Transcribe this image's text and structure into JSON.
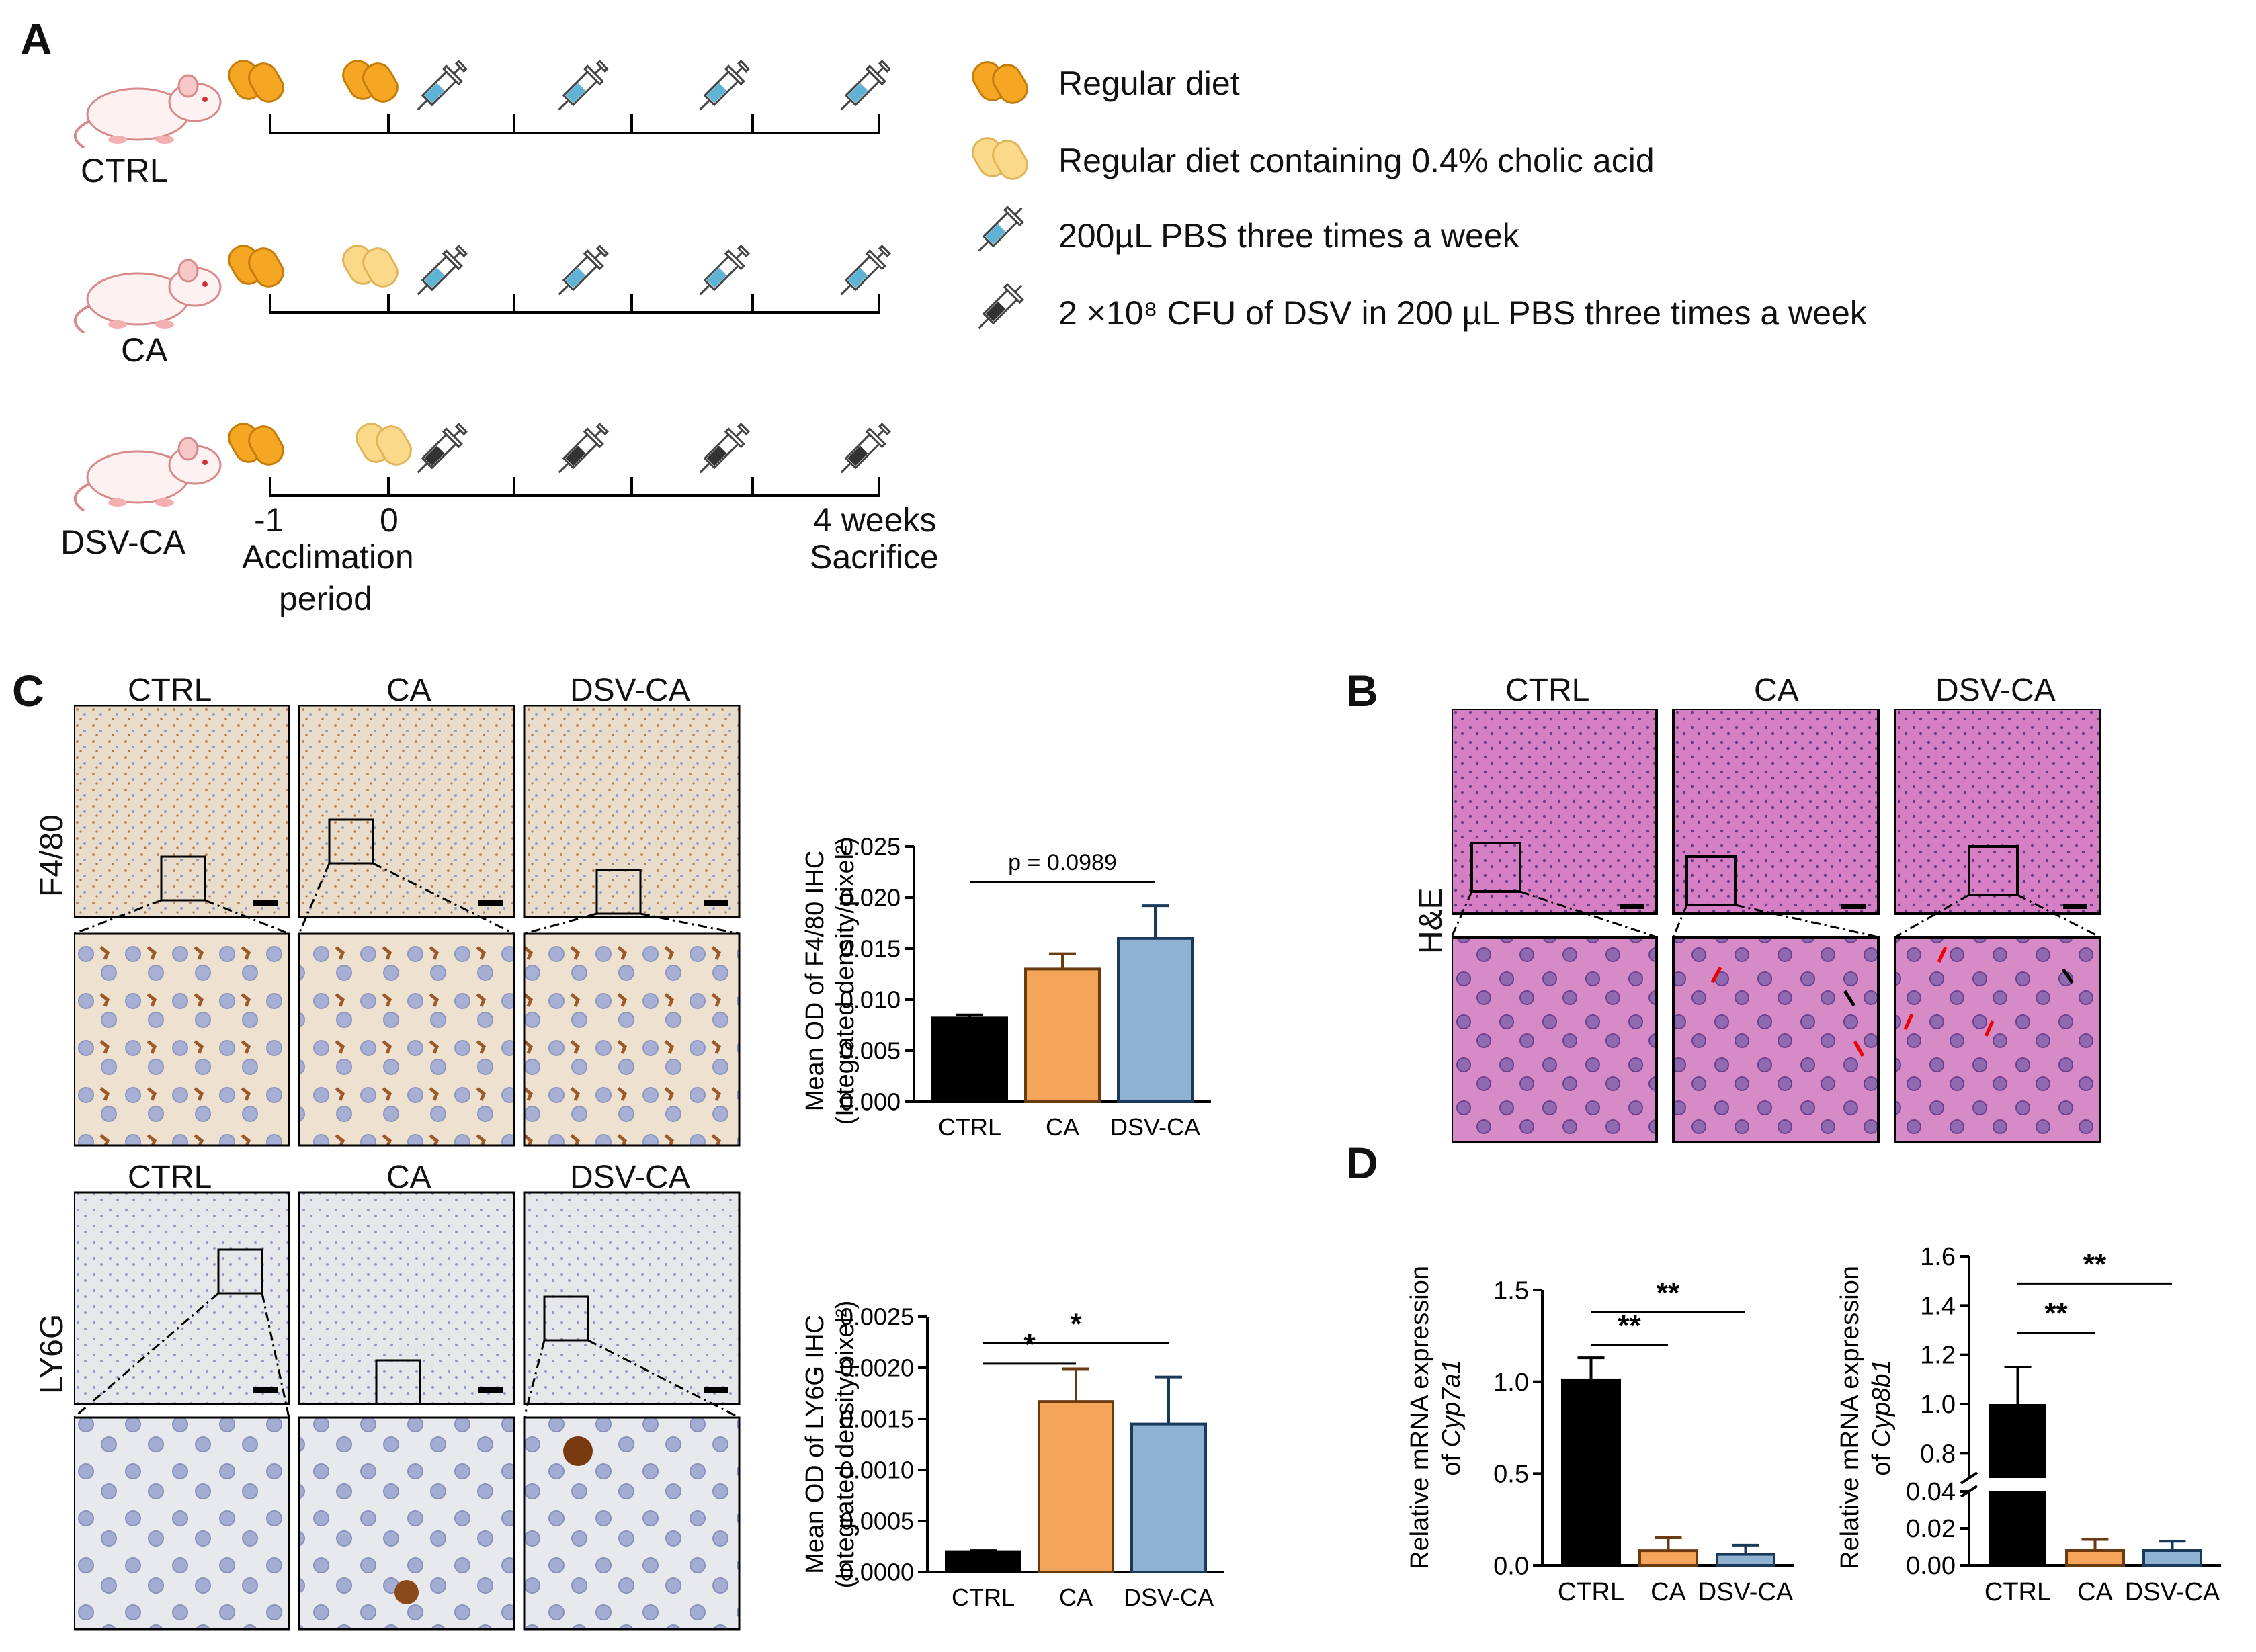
{
  "panel_labels": {
    "a": "A",
    "b": "B",
    "c": "C",
    "d": "D"
  },
  "timeline": {
    "groups": [
      "CTRL",
      "CA",
      "DSV-CA"
    ],
    "ticks": {
      "start": "-1",
      "zero": "0",
      "end": "4 weeks"
    },
    "notes": {
      "acclimation_line1": "Acclimation",
      "acclimation_line2": "period",
      "sacrifice": "Sacrifice"
    },
    "legend": [
      {
        "icon": "regular-diet-icon",
        "label": "Regular diet"
      },
      {
        "icon": "cholic-acid-diet-icon",
        "label": "Regular diet containing 0.4% cholic acid"
      },
      {
        "icon": "pbs-syringe-icon",
        "label": "200µL PBS three times a week"
      },
      {
        "icon": "dsv-syringe-icon",
        "label": "2 ×10⁸ CFU of  DSV in 200 µL PBS three times a week"
      }
    ],
    "colors": {
      "regular": "#f5a623",
      "cholic": "#fbd98a",
      "pbs": "#5fb3d4",
      "dsv": "#333333"
    }
  },
  "panel_c": {
    "f480": {
      "row_label": "F4/80",
      "columns": [
        "CTRL",
        "CA",
        "DSV-CA"
      ],
      "chart_data": {
        "type": "bar",
        "categories": [
          "CTRL",
          "CA",
          "DSV-CA"
        ],
        "values": [
          0.0082,
          0.013,
          0.016
        ],
        "errors": [
          0.0003,
          0.0015,
          0.0032
        ],
        "ylabel_line1": "Mean OD of F4/80 IHC",
        "ylabel_line2": "(Integrated density/pixel²)",
        "ylim": [
          0,
          0.025
        ],
        "ticks": [
          "0.000",
          "0.005",
          "0.010",
          "0.015",
          "0.020",
          "0.025"
        ],
        "annotations": [
          "p = 0.0989"
        ],
        "colors": [
          "#000000",
          "#f4a55a",
          "#8fb2d3"
        ]
      }
    },
    "ly6g": {
      "row_label": "LY6G",
      "columns": [
        "CTRL",
        "CA",
        "DSV-CA"
      ],
      "chart_data": {
        "type": "bar",
        "categories": [
          "CTRL",
          "CA",
          "DSV-CA"
        ],
        "values": [
          0.0002,
          0.00167,
          0.00145
        ],
        "errors": [
          1e-05,
          0.00032,
          0.00046
        ],
        "ylabel_line1": "Mean OD of LY6G IHC",
        "ylabel_line2": "(Integrated density/pixel²)",
        "ylim": [
          0,
          0.0025
        ],
        "ticks": [
          "0.0000",
          "0.0005",
          "0.0010",
          "0.0015",
          "0.0020",
          "0.0025"
        ],
        "annotations": [
          "*",
          "*"
        ],
        "colors": [
          "#000000",
          "#f4a55a",
          "#8fb2d3"
        ]
      }
    }
  },
  "panel_b": {
    "row_label": "H&E",
    "columns": [
      "CTRL",
      "CA",
      "DSV-CA"
    ]
  },
  "panel_d": {
    "cyp7a1": {
      "chart_data": {
        "type": "bar",
        "categories": [
          "CTRL",
          "CA",
          "DSV-CA"
        ],
        "values": [
          1.01,
          0.08,
          0.06
        ],
        "errors": [
          0.12,
          0.07,
          0.05
        ],
        "ylabel_line1": "Relative mRNA expression",
        "ylabel_line2_prefix": "of ",
        "gene": "Cyp7a1",
        "ylim": [
          0,
          1.5
        ],
        "ticks": [
          "0.0",
          "0.5",
          "1.0",
          "1.5"
        ],
        "annotations": [
          "**",
          "**"
        ],
        "colors": [
          "#000000",
          "#f4a55a",
          "#8fb2d3"
        ]
      }
    },
    "cyp8b1": {
      "chart_data": {
        "type": "bar",
        "categories": [
          "CTRL",
          "CA",
          "DSV-CA"
        ],
        "values": [
          1.0,
          0.008,
          0.008
        ],
        "errors": [
          0.15,
          0.006,
          0.005
        ],
        "ylabel_line1": "Relative mRNA expression",
        "ylabel_line2_prefix": "of ",
        "gene": "Cyp8b1",
        "ylim_lower": [
          0,
          0.04
        ],
        "ylim_upper": [
          0.7,
          1.6
        ],
        "ticks_lower": [
          "0.00",
          "0.02",
          "0.04"
        ],
        "ticks_upper": [
          "0.8",
          "1.0",
          "1.2",
          "1.4",
          "1.6"
        ],
        "annotations": [
          "**",
          "**"
        ],
        "colors": [
          "#000000",
          "#f4a55a",
          "#8fb2d3"
        ]
      }
    }
  }
}
